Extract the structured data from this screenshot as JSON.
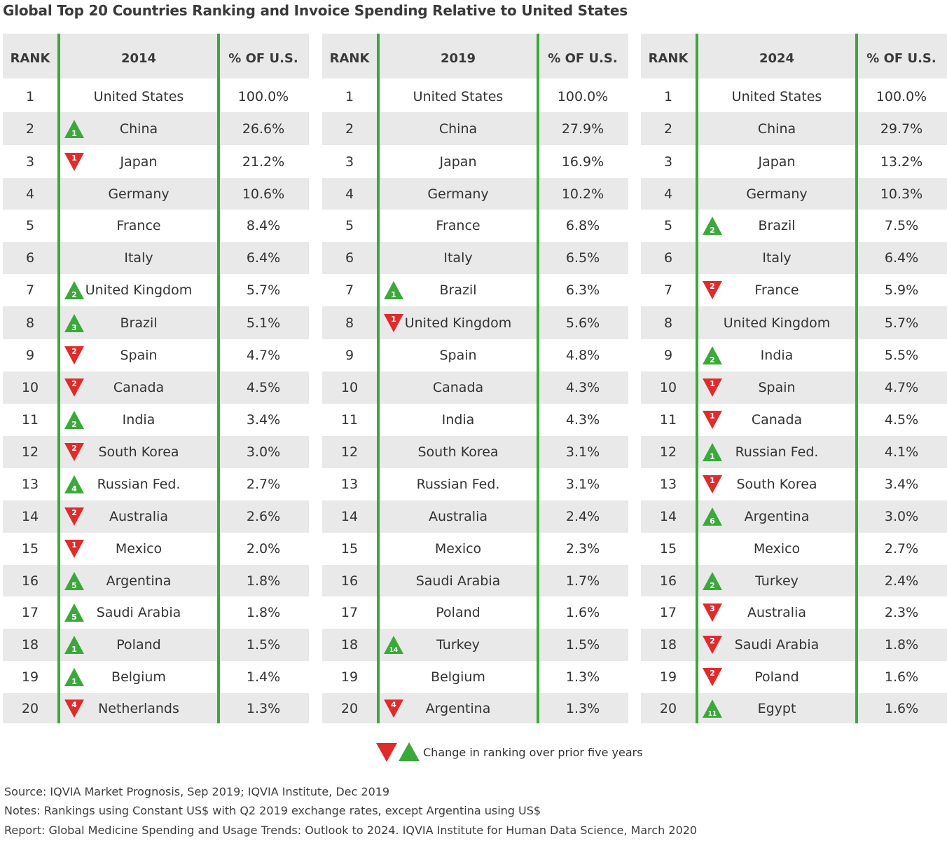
{
  "title": "Global Top 20 Countries Ranking and Invoice Spending Relative to United States",
  "colors": {
    "up": "#3aa93a",
    "down": "#e02b2b",
    "divider": "#3aa93a",
    "stripe": "#e9e9e9"
  },
  "tables": [
    {
      "headers": {
        "rank": "RANK",
        "year": "2014",
        "pct": "% OF U.S."
      },
      "rows": [
        {
          "rank": "1",
          "country": "United States",
          "pct": "100.0%",
          "change": null,
          "change_label": ""
        },
        {
          "rank": "2",
          "country": "China",
          "pct": "26.6%",
          "change": "up",
          "change_label": "1"
        },
        {
          "rank": "3",
          "country": "Japan",
          "pct": "21.2%",
          "change": "down",
          "change_label": "1"
        },
        {
          "rank": "4",
          "country": "Germany",
          "pct": "10.6%",
          "change": null,
          "change_label": ""
        },
        {
          "rank": "5",
          "country": "France",
          "pct": "8.4%",
          "change": null,
          "change_label": ""
        },
        {
          "rank": "6",
          "country": "Italy",
          "pct": "6.4%",
          "change": null,
          "change_label": ""
        },
        {
          "rank": "7",
          "country": "United Kingdom",
          "pct": "5.7%",
          "change": "up",
          "change_label": "2"
        },
        {
          "rank": "8",
          "country": "Brazil",
          "pct": "5.1%",
          "change": "up",
          "change_label": "3"
        },
        {
          "rank": "9",
          "country": "Spain",
          "pct": "4.7%",
          "change": "down",
          "change_label": "2"
        },
        {
          "rank": "10",
          "country": "Canada",
          "pct": "4.5%",
          "change": "down",
          "change_label": "2"
        },
        {
          "rank": "11",
          "country": "India",
          "pct": "3.4%",
          "change": "up",
          "change_label": "2"
        },
        {
          "rank": "12",
          "country": "South Korea",
          "pct": "3.0%",
          "change": "down",
          "change_label": "2"
        },
        {
          "rank": "13",
          "country": "Russian Fed.",
          "pct": "2.7%",
          "change": "up",
          "change_label": "4"
        },
        {
          "rank": "14",
          "country": "Australia",
          "pct": "2.6%",
          "change": "down",
          "change_label": "2"
        },
        {
          "rank": "15",
          "country": "Mexico",
          "pct": "2.0%",
          "change": "down",
          "change_label": "1"
        },
        {
          "rank": "16",
          "country": "Argentina",
          "pct": "1.8%",
          "change": "up",
          "change_label": "5"
        },
        {
          "rank": "17",
          "country": "Saudi Arabia",
          "pct": "1.8%",
          "change": "up",
          "change_label": "5"
        },
        {
          "rank": "18",
          "country": "Poland",
          "pct": "1.5%",
          "change": "up",
          "change_label": "1"
        },
        {
          "rank": "19",
          "country": "Belgium",
          "pct": "1.4%",
          "change": "up",
          "change_label": "1"
        },
        {
          "rank": "20",
          "country": "Netherlands",
          "pct": "1.3%",
          "change": "down",
          "change_label": "4"
        }
      ]
    },
    {
      "headers": {
        "rank": "RANK",
        "year": "2019",
        "pct": "% OF U.S."
      },
      "rows": [
        {
          "rank": "1",
          "country": "United States",
          "pct": "100.0%",
          "change": null,
          "change_label": ""
        },
        {
          "rank": "2",
          "country": "China",
          "pct": "27.9%",
          "change": null,
          "change_label": ""
        },
        {
          "rank": "3",
          "country": "Japan",
          "pct": "16.9%",
          "change": null,
          "change_label": ""
        },
        {
          "rank": "4",
          "country": "Germany",
          "pct": "10.2%",
          "change": null,
          "change_label": ""
        },
        {
          "rank": "5",
          "country": "France",
          "pct": "6.8%",
          "change": null,
          "change_label": ""
        },
        {
          "rank": "6",
          "country": "Italy",
          "pct": "6.5%",
          "change": null,
          "change_label": ""
        },
        {
          "rank": "7",
          "country": "Brazil",
          "pct": "6.3%",
          "change": "up",
          "change_label": "1"
        },
        {
          "rank": "8",
          "country": "United Kingdom",
          "pct": "5.6%",
          "change": "down",
          "change_label": "1"
        },
        {
          "rank": "9",
          "country": "Spain",
          "pct": "4.8%",
          "change": null,
          "change_label": ""
        },
        {
          "rank": "10",
          "country": "Canada",
          "pct": "4.3%",
          "change": null,
          "change_label": ""
        },
        {
          "rank": "11",
          "country": "India",
          "pct": "4.3%",
          "change": null,
          "change_label": ""
        },
        {
          "rank": "12",
          "country": "South Korea",
          "pct": "3.1%",
          "change": null,
          "change_label": ""
        },
        {
          "rank": "13",
          "country": "Russian Fed.",
          "pct": "3.1%",
          "change": null,
          "change_label": ""
        },
        {
          "rank": "14",
          "country": "Australia",
          "pct": "2.4%",
          "change": null,
          "change_label": ""
        },
        {
          "rank": "15",
          "country": "Mexico",
          "pct": "2.3%",
          "change": null,
          "change_label": ""
        },
        {
          "rank": "16",
          "country": "Saudi Arabia",
          "pct": "1.7%",
          "change": null,
          "change_label": ""
        },
        {
          "rank": "17",
          "country": "Poland",
          "pct": "1.6%",
          "change": null,
          "change_label": ""
        },
        {
          "rank": "18",
          "country": "Turkey",
          "pct": "1.5%",
          "change": "up",
          "change_label": "14"
        },
        {
          "rank": "19",
          "country": "Belgium",
          "pct": "1.3%",
          "change": null,
          "change_label": ""
        },
        {
          "rank": "20",
          "country": "Argentina",
          "pct": "1.3%",
          "change": "down",
          "change_label": "4"
        }
      ]
    },
    {
      "headers": {
        "rank": "RANK",
        "year": "2024",
        "pct": "% OF U.S."
      },
      "rows": [
        {
          "rank": "1",
          "country": "United States",
          "pct": "100.0%",
          "change": null,
          "change_label": ""
        },
        {
          "rank": "2",
          "country": "China",
          "pct": "29.7%",
          "change": null,
          "change_label": ""
        },
        {
          "rank": "3",
          "country": "Japan",
          "pct": "13.2%",
          "change": null,
          "change_label": ""
        },
        {
          "rank": "4",
          "country": "Germany",
          "pct": "10.3%",
          "change": null,
          "change_label": ""
        },
        {
          "rank": "5",
          "country": "Brazil",
          "pct": "7.5%",
          "change": "up",
          "change_label": "2"
        },
        {
          "rank": "6",
          "country": "Italy",
          "pct": "6.4%",
          "change": null,
          "change_label": ""
        },
        {
          "rank": "7",
          "country": "France",
          "pct": "5.9%",
          "change": "down",
          "change_label": "2"
        },
        {
          "rank": "8",
          "country": "United Kingdom",
          "pct": "5.7%",
          "change": null,
          "change_label": ""
        },
        {
          "rank": "9",
          "country": "India",
          "pct": "5.5%",
          "change": "up",
          "change_label": "2"
        },
        {
          "rank": "10",
          "country": "Spain",
          "pct": "4.7%",
          "change": "down",
          "change_label": "1"
        },
        {
          "rank": "11",
          "country": "Canada",
          "pct": "4.5%",
          "change": "down",
          "change_label": "1"
        },
        {
          "rank": "12",
          "country": "Russian Fed.",
          "pct": "4.1%",
          "change": "up",
          "change_label": "1"
        },
        {
          "rank": "13",
          "country": "South Korea",
          "pct": "3.4%",
          "change": "down",
          "change_label": "1"
        },
        {
          "rank": "14",
          "country": "Argentina",
          "pct": "3.0%",
          "change": "up",
          "change_label": "6"
        },
        {
          "rank": "15",
          "country": "Mexico",
          "pct": "2.7%",
          "change": null,
          "change_label": ""
        },
        {
          "rank": "16",
          "country": "Turkey",
          "pct": "2.4%",
          "change": "up",
          "change_label": "2"
        },
        {
          "rank": "17",
          "country": "Australia",
          "pct": "2.3%",
          "change": "down",
          "change_label": "3"
        },
        {
          "rank": "18",
          "country": "Saudi Arabia",
          "pct": "1.8%",
          "change": "down",
          "change_label": "2"
        },
        {
          "rank": "19",
          "country": "Poland",
          "pct": "1.6%",
          "change": "down",
          "change_label": "2"
        },
        {
          "rank": "20",
          "country": "Egypt",
          "pct": "1.6%",
          "change": "up",
          "change_label": "11"
        }
      ]
    }
  ],
  "legend": {
    "label": "Change in ranking over prior five years"
  },
  "footnotes": {
    "source": "Source: IQVIA Market Prognosis, Sep 2019; IQVIA Institute, Dec 2019",
    "notes": "Notes: Rankings using Constant US$ with Q2 2019 exchange rates, except Argentina using US$",
    "report": "Report: Global Medicine Spending and Usage Trends: Outlook to 2024. IQVIA Institute for Human Data Science, March 2020"
  }
}
